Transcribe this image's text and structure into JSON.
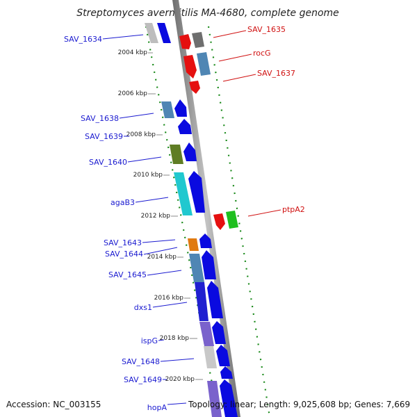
{
  "title": "Streptomyces avermitilis MA-4680, complete genome",
  "footer": {
    "accession": "Accession: NC_003155",
    "summary": "Topology: linear; Length: 9,025,608 bp; Genes: 7,669"
  },
  "ticks": [
    "2004 kbp",
    "2006 kbp",
    "2008 kbp",
    "2010 kbp",
    "2012 kbp",
    "2014 kbp",
    "2016 kbp",
    "2018 kbp",
    "2020 kbp"
  ],
  "genes_left": [
    "SAV_1634",
    "SAV_1638",
    "SAV_1639",
    "SAV_1640",
    "agaB3",
    "SAV_1643",
    "SAV_1644",
    "SAV_1645",
    "dxs1",
    "ispG",
    "SAV_1648",
    "SAV_1649",
    "hopA"
  ],
  "genes_right": [
    "SAV_1635",
    "rocG",
    "SAV_1637",
    "ptpA2"
  ],
  "colors": {
    "forward_gene": "#0a0ae0",
    "reverse_gene": "#e51010",
    "backbone": "#8c8c8c",
    "tick_dots": "#1a8a1a",
    "label_left": "#1a1ad0",
    "label_right": "#d01010"
  }
}
